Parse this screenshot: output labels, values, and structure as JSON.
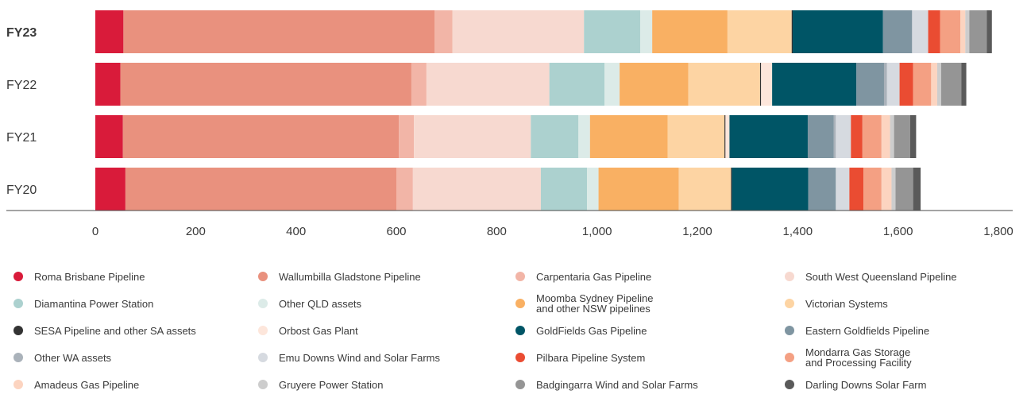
{
  "chart_data": {
    "type": "bar",
    "orientation": "horizontal",
    "stacked": true,
    "title": "",
    "xlabel": "",
    "ylabel": "",
    "xlim": [
      0,
      1800
    ],
    "xticks": [
      0,
      200,
      400,
      600,
      800,
      1000,
      1200,
      1400,
      1600,
      1800
    ],
    "xtick_labels": [
      "0",
      "200",
      "400",
      "600",
      "800",
      "1,000",
      "1,200",
      "1,400",
      "1,600",
      "1,800"
    ],
    "grid": false,
    "legend_position": "bottom",
    "categories": [
      "FY23",
      "FY22",
      "FY21",
      "FY20"
    ],
    "highlighted_category": "FY23",
    "series": [
      {
        "name": "Roma Brisbane Pipeline",
        "color": "#d91b3a",
        "values": [
          56,
          50,
          55,
          60
        ]
      },
      {
        "name": "Wallumbilla Gladstone Pipeline",
        "color": "#e9917e",
        "values": [
          620,
          580,
          550,
          540
        ]
      },
      {
        "name": "Carpentaria Gas Pipeline",
        "color": "#f2b5a7",
        "values": [
          36,
          30,
          30,
          33
        ]
      },
      {
        "name": "South West Queensland Pipeline",
        "color": "#f7d9d0",
        "values": [
          262,
          245,
          233,
          255
        ]
      },
      {
        "name": "Diamantina Power Station",
        "color": "#acd1cf",
        "values": [
          112,
          110,
          95,
          92
        ]
      },
      {
        "name": "Other QLD assets",
        "color": "#dcebe8",
        "values": [
          24,
          30,
          23,
          23
        ]
      },
      {
        "name": "Moomba Sydney Pipeline\nand other NSW pipelines",
        "color": "#f9b063",
        "values": [
          150,
          137,
          155,
          160
        ]
      },
      {
        "name": "Victorian Systems",
        "color": "#fdd4a3",
        "values": [
          128,
          143,
          113,
          104
        ]
      },
      {
        "name": "SESA Pipeline and other SA assets",
        "color": "#333333",
        "values": [
          2,
          2,
          2,
          2
        ]
      },
      {
        "name": "Orbost Gas Plant",
        "color": "#fde6db",
        "values": [
          0,
          22,
          8,
          0
        ]
      },
      {
        "name": "GoldFields Gas Pipeline",
        "color": "#005566",
        "values": [
          180,
          168,
          156,
          152
        ]
      },
      {
        "name": "Eastern Goldfields Pipeline",
        "color": "#7f95a1",
        "values": [
          58,
          55,
          52,
          55
        ]
      },
      {
        "name": "Other WA assets",
        "color": "#aab2ba",
        "values": [
          0,
          6,
          4,
          0
        ]
      },
      {
        "name": "Emu Downs Wind and Solar Farms",
        "color": "#d6dae0",
        "values": [
          32,
          25,
          30,
          27
        ]
      },
      {
        "name": "Pilbara Pipeline System",
        "color": "#ea4c32",
        "values": [
          24,
          27,
          23,
          28
        ]
      },
      {
        "name": "Mondarra Gas Storage\nand Processing Facility",
        "color": "#f4a083",
        "values": [
          40,
          36,
          38,
          36
        ]
      },
      {
        "name": "Amadeus Gas Pipeline",
        "color": "#fcd4c0",
        "values": [
          10,
          12,
          17,
          20
        ]
      },
      {
        "name": "Gruyere Power Station",
        "color": "#cdcdcd",
        "values": [
          8,
          8,
          8,
          8
        ]
      },
      {
        "name": "Badgingarra Wind and Solar Farms",
        "color": "#959595",
        "values": [
          35,
          40,
          32,
          35
        ]
      },
      {
        "name": "Darling Downs Solar Farm",
        "color": "#5a5a5a",
        "values": [
          10,
          10,
          12,
          15
        ]
      }
    ]
  }
}
